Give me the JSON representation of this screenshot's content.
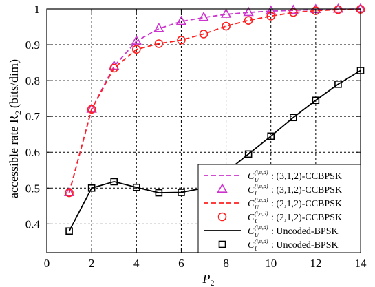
{
  "chart_data": {
    "type": "line",
    "xlabel": "P",
    "xlabel_sub": "2",
    "ylabel": "accessible rate R",
    "ylabel_sub": "2",
    "ylabel_unit": "(bits/dim)",
    "xlim": [
      0,
      14
    ],
    "ylim": [
      0.32,
      1.0
    ],
    "xticks": [
      0,
      2,
      4,
      6,
      8,
      10,
      12,
      14
    ],
    "yticks": [
      0.4,
      0.5,
      0.6,
      0.7,
      0.8,
      0.9,
      1
    ],
    "ytick_labels": [
      "0.4",
      "0.5",
      "0.6",
      "0.7",
      "0.8",
      "0.9",
      "1"
    ],
    "grid": true,
    "legend_position": "bottom-right",
    "series": [
      {
        "key": "cu312",
        "symbol": "C",
        "sup": "(i,u,d)",
        "sub": "U",
        "label": ": (3,1,2)-CCBPSK",
        "color": "#cc33cc",
        "style": "dashed",
        "marker": "none",
        "x": [
          1,
          2,
          3,
          4,
          5,
          6,
          7,
          8,
          9,
          10,
          11,
          12,
          13,
          14
        ],
        "y": [
          0.487,
          0.72,
          0.84,
          0.91,
          0.945,
          0.965,
          0.976,
          0.985,
          0.99,
          0.994,
          0.996,
          0.998,
          0.999,
          1.0
        ]
      },
      {
        "key": "cl312",
        "symbol": "C",
        "sup": "(i,u,d)",
        "sub": "L",
        "label": ": (3,1,2)-CCBPSK",
        "color": "#cc33cc",
        "style": "none",
        "marker": "triangle",
        "x": [
          1,
          2,
          3,
          4,
          5,
          6,
          7,
          8,
          9,
          10,
          11,
          12,
          13,
          14
        ],
        "y": [
          0.487,
          0.72,
          0.84,
          0.91,
          0.945,
          0.965,
          0.976,
          0.985,
          0.99,
          0.994,
          0.996,
          0.998,
          0.999,
          1.0
        ]
      },
      {
        "key": "cu212",
        "symbol": "C",
        "sup": "(i,u,d)",
        "sub": "U",
        "label": ": (2,1,2)-CCBPSK",
        "color": "#ff2020",
        "style": "dashed",
        "marker": "none",
        "x": [
          1,
          2,
          3,
          4,
          5,
          6,
          7,
          8,
          9,
          10,
          11,
          12,
          13,
          14
        ],
        "y": [
          0.487,
          0.72,
          0.835,
          0.887,
          0.903,
          0.913,
          0.93,
          0.952,
          0.968,
          0.98,
          0.99,
          0.995,
          0.998,
          0.999
        ]
      },
      {
        "key": "cl212",
        "symbol": "C",
        "sup": "(i,u,d)",
        "sub": "L",
        "label": ": (2,1,2)-CCBPSK",
        "color": "#ff2020",
        "style": "none",
        "marker": "circle",
        "x": [
          1,
          2,
          3,
          4,
          5,
          6,
          7,
          8,
          9,
          10,
          11,
          12,
          13,
          14
        ],
        "y": [
          0.487,
          0.72,
          0.835,
          0.887,
          0.903,
          0.913,
          0.93,
          0.952,
          0.968,
          0.98,
          0.99,
          0.995,
          0.998,
          0.999
        ]
      },
      {
        "key": "cubpsk",
        "symbol": "C",
        "sup": "(i,u,d)",
        "sub": "U",
        "label": ": Uncoded-BPSK",
        "color": "#000000",
        "style": "solid",
        "marker": "none",
        "x": [
          1,
          2,
          3,
          4,
          5,
          6,
          7,
          8,
          9,
          10,
          11,
          12,
          13,
          14
        ],
        "y": [
          0.38,
          0.5,
          0.518,
          0.502,
          0.487,
          0.488,
          0.5,
          0.545,
          0.595,
          0.645,
          0.697,
          0.745,
          0.79,
          0.828
        ]
      },
      {
        "key": "clbpsk",
        "symbol": "C",
        "sup": "(i,u,d)",
        "sub": "L",
        "label": ": Uncoded-BPSK",
        "color": "#000000",
        "style": "none",
        "marker": "square",
        "x": [
          1,
          2,
          3,
          4,
          5,
          6,
          7,
          8,
          9,
          10,
          11,
          12,
          13,
          14
        ],
        "y": [
          0.38,
          0.5,
          0.518,
          0.502,
          0.487,
          0.488,
          0.5,
          0.545,
          0.595,
          0.645,
          0.697,
          0.745,
          0.79,
          0.828
        ]
      }
    ]
  }
}
